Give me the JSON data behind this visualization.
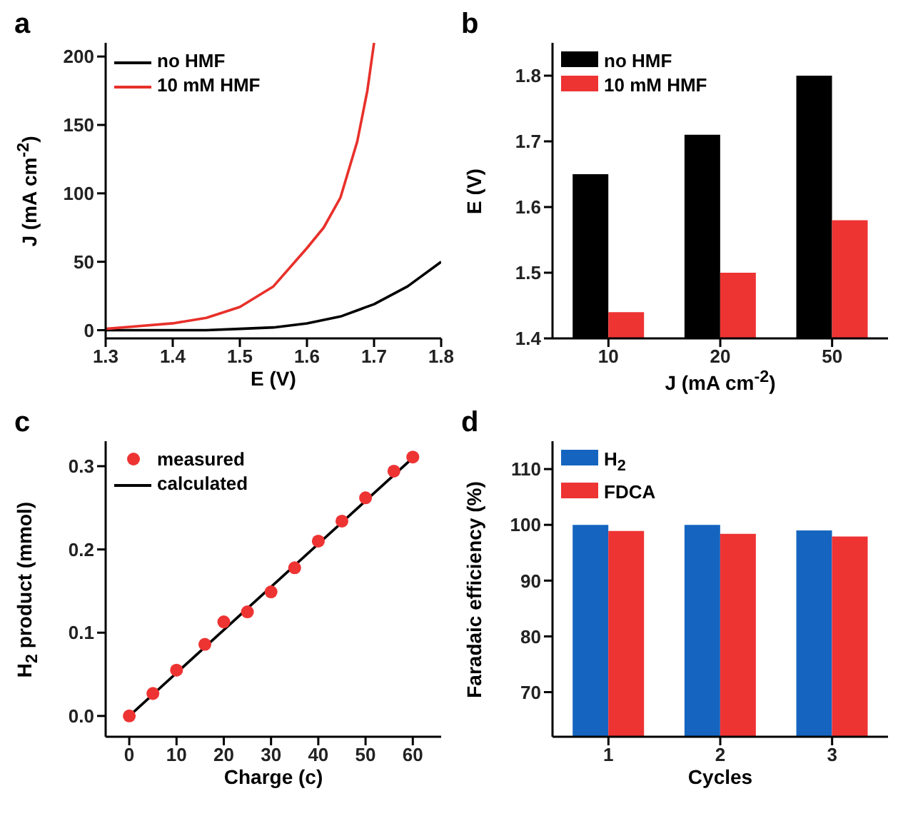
{
  "chart_data": [
    {
      "type": "line",
      "title": "a",
      "xlabel": "E (V)",
      "ylabel": "J (mA cm$^{-2}$)",
      "xlim": [
        1.3,
        1.8
      ],
      "xticks": [
        1.3,
        1.4,
        1.5,
        1.6,
        1.7,
        1.8
      ],
      "ylim": [
        -6,
        210
      ],
      "yticks": [
        0,
        50,
        100,
        150,
        200
      ],
      "legend": "top left",
      "series": [
        {
          "name": "no HMF",
          "color": "#000000",
          "x": [
            1.3,
            1.35,
            1.4,
            1.45,
            1.5,
            1.55,
            1.6,
            1.65,
            1.7,
            1.75,
            1.8
          ],
          "values": [
            0,
            0,
            0,
            0,
            1,
            2,
            5,
            10,
            19,
            32,
            50
          ]
        },
        {
          "name": "10 mM HMF",
          "color": "#e8302a",
          "x": [
            1.3,
            1.35,
            1.4,
            1.45,
            1.5,
            1.55,
            1.6,
            1.625,
            1.65,
            1.675,
            1.69,
            1.7
          ],
          "values": [
            1,
            3,
            5,
            9,
            17,
            32,
            60,
            75,
            97,
            138,
            175,
            210
          ]
        }
      ]
    },
    {
      "type": "bar",
      "title": "b",
      "xlabel": "J (mA cm$^{-2}$)",
      "ylabel": "E (V)",
      "categories": [
        "10",
        "20",
        "50"
      ],
      "ylim": [
        1.4,
        1.85
      ],
      "yticks": [
        1.4,
        1.5,
        1.6,
        1.7,
        1.8
      ],
      "legend": "top left",
      "series": [
        {
          "name": "no HMF",
          "color": "#000000",
          "values": [
            1.65,
            1.71,
            1.8
          ]
        },
        {
          "name": "10 mM HMF",
          "color": "#ee3333",
          "values": [
            1.44,
            1.5,
            1.58
          ]
        }
      ]
    },
    {
      "type": "scatter",
      "title": "c",
      "xlabel": "Charge (c)",
      "ylabel": "H$_{2}$ product (mmol)",
      "xlim": [
        -5,
        66
      ],
      "xticks": [
        0,
        10,
        20,
        30,
        40,
        50,
        60
      ],
      "ylim": [
        -0.025,
        0.33
      ],
      "yticks": [
        {
          "value": 0,
          "label": "0.0"
        },
        0.1,
        0.2,
        0.3
      ],
      "legend": "top left",
      "series": [
        {
          "name": "measured",
          "color": "#ee3333",
          "x": [
            0,
            5,
            10,
            16,
            20,
            25,
            30,
            35,
            40,
            45,
            50,
            56,
            60
          ],
          "values": [
            0,
            0.027,
            0.055,
            0.086,
            0.113,
            0.125,
            0.149,
            0.178,
            0.21,
            0.234,
            0.262,
            0.294,
            0.311
          ]
        },
        {
          "name": "calculated",
          "type": "line",
          "color": "#000000",
          "x": [
            0,
            60
          ],
          "values": [
            0,
            0.31
          ]
        }
      ]
    },
    {
      "type": "bar",
      "title": "d",
      "xlabel": "Cycles",
      "ylabel": "Faradaic efficiency (%)",
      "categories": [
        "1",
        "2",
        "3"
      ],
      "ylim": [
        62,
        115
      ],
      "yticks": [
        70,
        80,
        90,
        100,
        110
      ],
      "legend": "top left",
      "series": [
        {
          "name": "H$_{2}$",
          "color": "#1565c0",
          "values": [
            100,
            100,
            99
          ]
        },
        {
          "name": "FDCA",
          "color": "#ee3333",
          "values": [
            98.9,
            98.4,
            97.9
          ]
        }
      ]
    }
  ]
}
